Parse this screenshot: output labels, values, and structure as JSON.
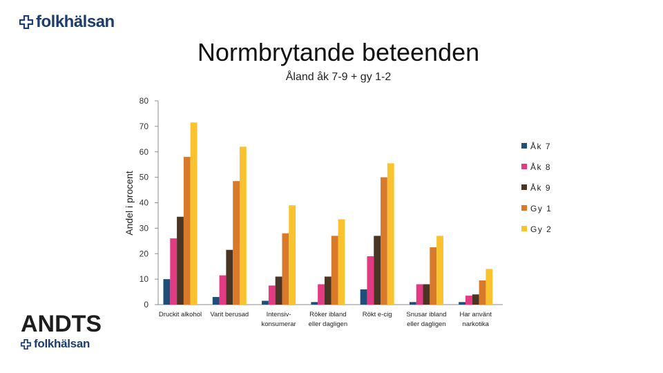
{
  "logo_top": {
    "text": "folkhälsan",
    "icon": "cross-icon"
  },
  "logo_bottom": {
    "text": "folkhälsan",
    "icon": "cross-icon"
  },
  "brand": {
    "andts": "ANDTS"
  },
  "colors": {
    "brand": "#1d3d6e"
  },
  "chart_data": {
    "type": "bar",
    "title": "Normbrytande beteenden",
    "subtitle": "Åland åk 7-9 + gy 1-2",
    "xlabel": "",
    "ylabel": "Andel i procent",
    "ylim": [
      0,
      80
    ],
    "yticks": [
      0,
      10,
      20,
      30,
      40,
      50,
      60,
      70,
      80
    ],
    "categories": [
      [
        "Druckit alkohol"
      ],
      [
        "Varit berusad"
      ],
      [
        "Intensiv-",
        "konsumerar"
      ],
      [
        "Röker ibland",
        "eller dagligen"
      ],
      [
        "Rökt e-cig"
      ],
      [
        "Snusar ibland",
        "eller dagligen"
      ],
      [
        "Har använt",
        "narkotika"
      ]
    ],
    "series": [
      {
        "name": "Åk 7",
        "color": "#1f4e79",
        "values": [
          10,
          3,
          1.5,
          1,
          6,
          1,
          1
        ]
      },
      {
        "name": "Åk 8",
        "color": "#e23a83",
        "values": [
          26,
          11.5,
          7.5,
          8,
          19,
          8,
          3.5
        ]
      },
      {
        "name": "Åk 9",
        "color": "#4a3424",
        "values": [
          34.5,
          21.5,
          11,
          11,
          27,
          8,
          4
        ]
      },
      {
        "name": "Gy 1",
        "color": "#d97a2b",
        "values": [
          58,
          48.5,
          28,
          27,
          50,
          22.5,
          9.5
        ]
      },
      {
        "name": "Gy 2",
        "color": "#f9c22e",
        "values": [
          71.5,
          62,
          39,
          33.5,
          55.5,
          27,
          14
        ]
      }
    ],
    "legend_position": "right",
    "grid": false
  }
}
